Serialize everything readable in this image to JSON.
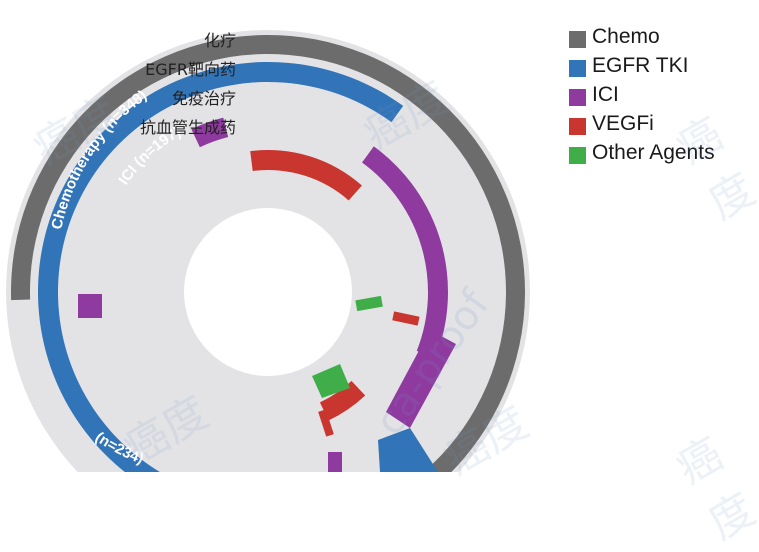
{
  "chart_data": {
    "type": "radial-bar",
    "rings": [
      {
        "name": "Chemotherapy",
        "n": 348,
        "label": "Chemotherapy (n=348)",
        "color": "#6c6c6c",
        "segments": [
          {
            "start": 0.745,
            "end": 1.505
          }
        ]
      },
      {
        "name": "EGFR TKI",
        "n": 234,
        "label": "(n=234)",
        "color": "#3274b8",
        "segments": [
          {
            "start": 0.44,
            "end": 1.1
          }
        ]
      },
      {
        "name": "ICI",
        "n": 197,
        "label": "ICI (n=197)",
        "color": "#8e3a9e",
        "segments": [
          {
            "start": 1.1,
            "end": 1.31
          },
          {
            "start": 0.93,
            "end": 0.96
          }
        ]
      },
      {
        "name": "VEGFi",
        "color": "#c8362f",
        "segments": [
          {
            "start": 1.38,
            "end": 1.43
          },
          {
            "start": 0.98,
            "end": 1.115
          }
        ]
      },
      {
        "name": "Other Agents",
        "color": "#3fae49",
        "segments": []
      }
    ]
  },
  "legend": [
    {
      "cn": "化疗",
      "en": "Chemo",
      "color": "#6c6c6c"
    },
    {
      "cn": "EGFR靶向药",
      "en": "EGFR TKI",
      "color": "#3274b8"
    },
    {
      "cn": "免疫治疗",
      "en": "ICI",
      "color": "#8e3a9e"
    },
    {
      "cn": "抗血管生成药",
      "en": "VEGFi",
      "color": "#c8362f"
    },
    {
      "cn": "",
      "en": "Other Agents",
      "color": "#3fae49"
    }
  ],
  "watermark": {
    "text": "癌度",
    "brand": "ca-proof"
  }
}
